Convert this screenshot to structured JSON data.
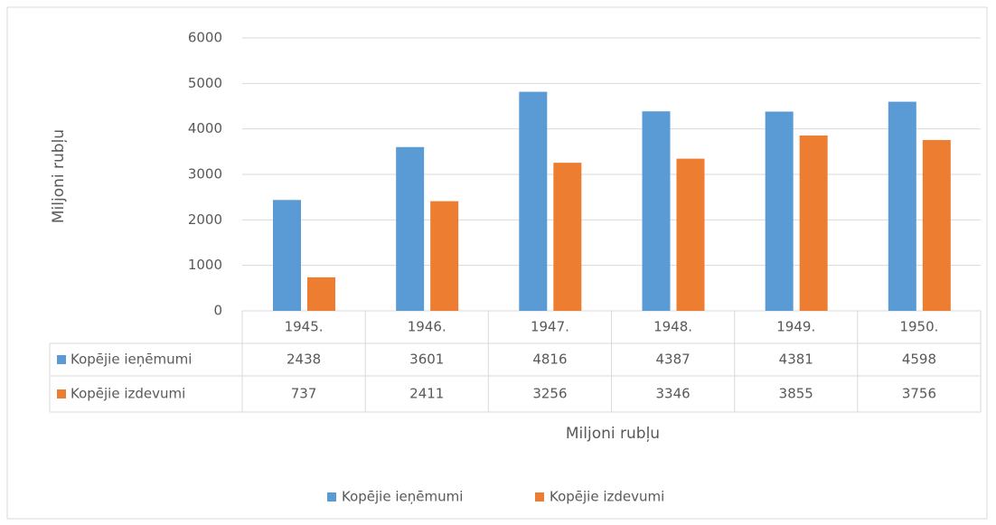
{
  "chart_data": {
    "type": "bar",
    "categories": [
      "1945.",
      "1946.",
      "1947.",
      "1948.",
      "1949.",
      "1950."
    ],
    "series": [
      {
        "name": "Kopējie ieņēmumi",
        "color": "#5b9bd5",
        "values": [
          2438,
          3601,
          4816,
          4387,
          4381,
          4598
        ]
      },
      {
        "name": "Kopējie izdevumi",
        "color": "#ed7d31",
        "values": [
          737,
          2411,
          3256,
          3346,
          3855,
          3756
        ]
      }
    ],
    "y_label": "Miljoni rubļu",
    "x_label": "Miljoni rubļu",
    "ylim": [
      0,
      6000
    ],
    "yticks": [
      0,
      1000,
      2000,
      3000,
      4000,
      5000,
      6000
    ],
    "grid": true,
    "legend": "bottom"
  }
}
